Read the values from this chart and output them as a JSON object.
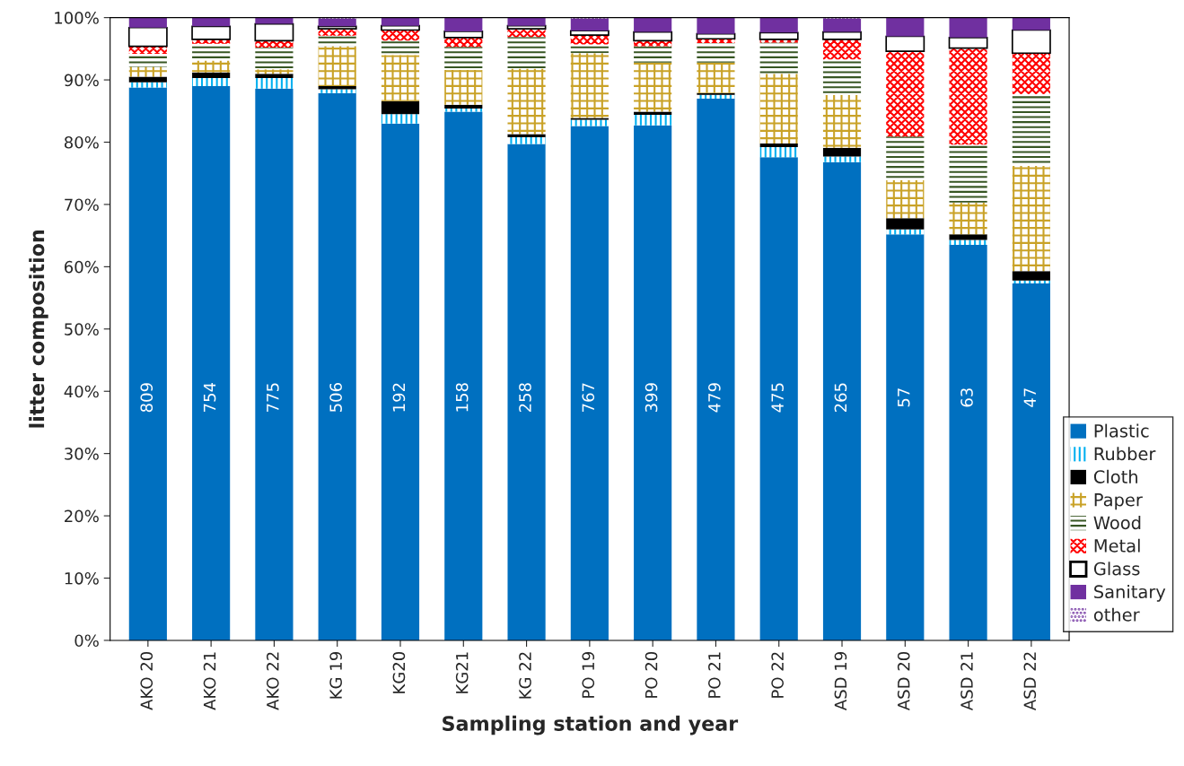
{
  "chart_data": {
    "type": "bar",
    "stacked": true,
    "xlabel": "Sampling station and year",
    "ylabel": "litter composition",
    "categories": [
      "AKO 20",
      "AKO 21",
      "AKO 22",
      "KG 19",
      "KG20",
      "KG21",
      "KG 22",
      "PO 19",
      "PO 20",
      "PO 21",
      "PO 22",
      "ASD 19",
      "ASD 20",
      "ASD 21",
      "ASD 22"
    ],
    "ylim": [
      0,
      100
    ],
    "yticks": [
      {
        "value": 0,
        "label": "0%"
      },
      {
        "value": 10,
        "label": "10%"
      },
      {
        "value": 20,
        "label": "20%"
      },
      {
        "value": 30,
        "label": "30%"
      },
      {
        "value": 40,
        "label": "40%"
      },
      {
        "value": 50,
        "label": "50%"
      },
      {
        "value": 60,
        "label": "60%"
      },
      {
        "value": 70,
        "label": "70%"
      },
      {
        "value": 80,
        "label": "80%"
      },
      {
        "value": 90,
        "label": "90%"
      },
      {
        "value": 100,
        "label": "100%"
      }
    ],
    "annotations": [
      "809",
      "754",
      "775",
      "506",
      "192",
      "158",
      "258",
      "767",
      "399",
      "479",
      "475",
      "265",
      "57",
      "63",
      "47"
    ],
    "grid": false,
    "legend": "bottom right",
    "series": [
      {
        "name": "Plastic",
        "color": "#0070c0",
        "values": [
          88.8,
          89.0,
          88.6,
          87.9,
          83.0,
          84.9,
          79.7,
          82.6,
          82.7,
          87.0,
          77.6,
          76.8,
          65.2,
          63.5,
          57.3
        ]
      },
      {
        "name": "Rubber",
        "color": "#00b0f0",
        "values": [
          0.8,
          1.3,
          1.7,
          0.6,
          1.5,
          0.5,
          1.1,
          1.0,
          1.7,
          0.6,
          1.6,
          0.9,
          0.8,
          0.8,
          0.5
        ]
      },
      {
        "name": "Cloth",
        "color": "#000000",
        "values": [
          0.9,
          0.9,
          0.7,
          0.5,
          2.1,
          0.6,
          0.5,
          0.3,
          0.5,
          0.3,
          0.6,
          1.4,
          1.8,
          0.9,
          1.5
        ]
      },
      {
        "name": "Paper",
        "color": "#c9a227",
        "values": [
          1.6,
          1.9,
          0.7,
          6.4,
          7.4,
          5.6,
          10.5,
          10.4,
          7.9,
          4.9,
          11.2,
          8.5,
          6.1,
          5.1,
          16.9
        ]
      },
      {
        "name": "Wood",
        "color": "#375623",
        "values": [
          2.1,
          2.7,
          3.5,
          1.7,
          2.3,
          3.7,
          5.1,
          1.4,
          2.6,
          3.1,
          5.0,
          5.7,
          7.0,
          9.3,
          11.5
        ]
      },
      {
        "name": "Metal",
        "color": "#ff0000",
        "values": [
          1.2,
          0.7,
          1.1,
          1.1,
          1.7,
          1.5,
          1.3,
          1.5,
          0.9,
          0.7,
          0.5,
          3.2,
          13.7,
          15.5,
          6.6
        ]
      },
      {
        "name": "Glass",
        "color": "#000000",
        "values": [
          3.0,
          2.1,
          2.7,
          0.4,
          0.7,
          1.0,
          0.5,
          0.7,
          1.4,
          0.8,
          1.1,
          1.2,
          2.4,
          1.7,
          3.7
        ]
      },
      {
        "name": "Sanitary",
        "color": "#7030a0",
        "values": [
          1.6,
          1.4,
          1.1,
          1.2,
          1.6,
          2.2,
          1.3,
          1.9,
          2.3,
          2.6,
          2.4,
          2.1,
          3.0,
          3.2,
          2.0
        ]
      },
      {
        "name": "other",
        "color": "#7030a0",
        "values": [
          0,
          0,
          0,
          0.2,
          0,
          0,
          0,
          0.2,
          0,
          0,
          0,
          0.2,
          0,
          0,
          0
        ]
      }
    ]
  }
}
